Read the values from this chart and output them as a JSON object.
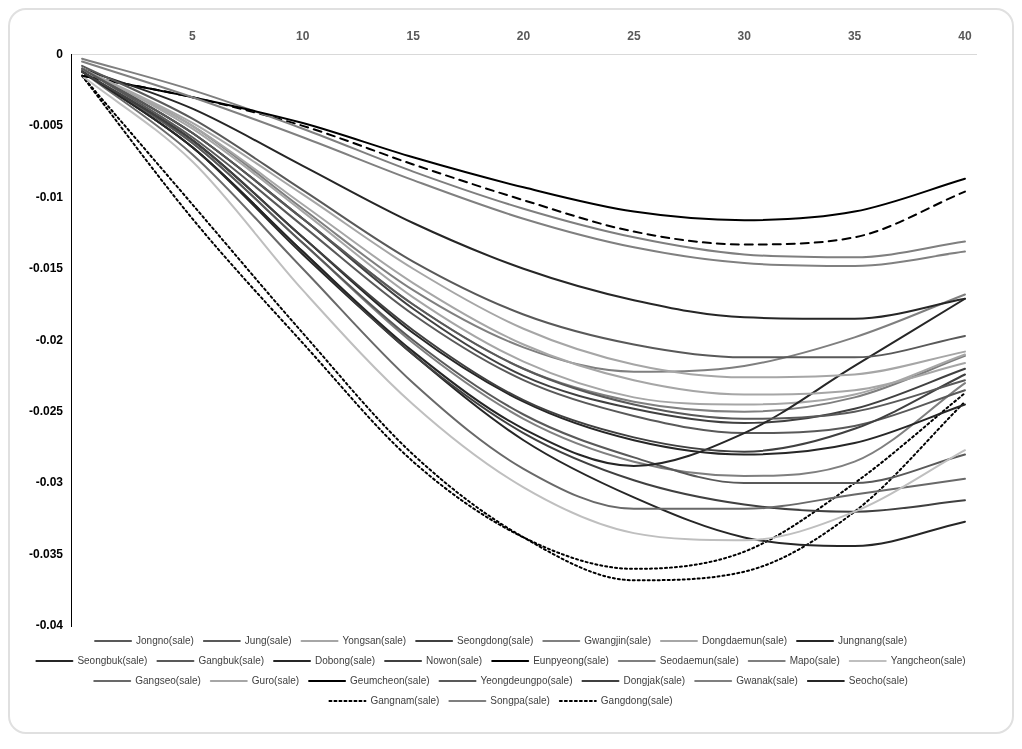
{
  "chart_data": {
    "type": "line",
    "x": [
      0,
      5,
      10,
      15,
      20,
      25,
      30,
      35,
      40
    ],
    "xlim": [
      -0.5,
      40.5
    ],
    "xticks": [
      5,
      10,
      15,
      20,
      25,
      30,
      35,
      40
    ],
    "ylim": [
      -0.04,
      0
    ],
    "yticks": [
      -0.04,
      -0.035,
      -0.03,
      -0.025,
      -0.02,
      -0.015,
      -0.01,
      -0.005,
      0
    ],
    "grid": false,
    "legend": "bottom",
    "marker": "none",
    "line_style": "solid",
    "series": [
      {
        "name": "Jongno(sale)",
        "color": "#595959",
        "values": [
          -0.0008,
          -0.0045,
          -0.0095,
          -0.0145,
          -0.0182,
          -0.0203,
          -0.0212,
          -0.0212,
          -0.0197
        ]
      },
      {
        "name": "Jung(sale)",
        "color": "#595959",
        "values": [
          -0.001,
          -0.0055,
          -0.0115,
          -0.0175,
          -0.022,
          -0.0245,
          -0.0255,
          -0.025,
          -0.0228
        ]
      },
      {
        "name": "Yongsan(sale)",
        "color": "#a6a6a6",
        "values": [
          -0.001,
          -0.005,
          -0.0105,
          -0.016,
          -0.0203,
          -0.0228,
          -0.0238,
          -0.0235,
          -0.0216
        ]
      },
      {
        "name": "Seongdong(sale)",
        "color": "#404040",
        "values": [
          -0.0012,
          -0.006,
          -0.0128,
          -0.0193,
          -0.0242,
          -0.0268,
          -0.0278,
          -0.0262,
          -0.0224
        ]
      },
      {
        "name": "Gwangjin(sale)",
        "color": "#808080",
        "values": [
          -0.0005,
          -0.003,
          -0.0058,
          -0.0088,
          -0.0115,
          -0.0135,
          -0.0146,
          -0.0148,
          -0.0138
        ]
      },
      {
        "name": "Dongdaemun(sale)",
        "color": "#a6a6a6",
        "values": [
          -0.001,
          -0.0048,
          -0.0098,
          -0.015,
          -0.0192,
          -0.0217,
          -0.0226,
          -0.0224,
          -0.0208
        ]
      },
      {
        "name": "Jungnang(sale)",
        "color": "#262626",
        "values": [
          -0.001,
          -0.0038,
          -0.0078,
          -0.0118,
          -0.015,
          -0.0172,
          -0.0184,
          -0.0185,
          -0.0171
        ]
      },
      {
        "name": "Seongbuk(sale)",
        "color": "#262626",
        "values": [
          -0.0012,
          -0.0065,
          -0.0138,
          -0.0208,
          -0.0262,
          -0.0288,
          -0.0265,
          -0.0218,
          -0.0171
        ]
      },
      {
        "name": "Gangbuk(sale)",
        "color": "#595959",
        "values": [
          -0.001,
          -0.0058,
          -0.012,
          -0.0182,
          -0.0228,
          -0.0253,
          -0.0265,
          -0.026,
          -0.0235
        ]
      },
      {
        "name": "Dobong(sale)",
        "color": "#262626",
        "values": [
          -0.0012,
          -0.006,
          -0.0128,
          -0.0195,
          -0.0243,
          -0.027,
          -0.028,
          -0.0272,
          -0.0245
        ]
      },
      {
        "name": "Nowon(sale)",
        "color": "#404040",
        "values": [
          -0.001,
          -0.0055,
          -0.0115,
          -0.0178,
          -0.0225,
          -0.0248,
          -0.0258,
          -0.0248,
          -0.022
        ]
      },
      {
        "name": "Eunpyeong(sale)",
        "color": "#000000",
        "values": [
          -0.0015,
          -0.003,
          -0.0048,
          -0.0072,
          -0.0093,
          -0.011,
          -0.0116,
          -0.011,
          -0.0087
        ]
      },
      {
        "name": "Seodaemun(sale)",
        "color": "#7f7f7f",
        "values": [
          -0.0003,
          -0.0025,
          -0.0052,
          -0.0082,
          -0.0108,
          -0.0128,
          -0.014,
          -0.0142,
          -0.0131
        ]
      },
      {
        "name": "Mapo(sale)",
        "color": "#7f7f7f",
        "values": [
          -0.001,
          -0.005,
          -0.0108,
          -0.0165,
          -0.0205,
          -0.0222,
          -0.0218,
          -0.0198,
          -0.0168
        ]
      },
      {
        "name": "Yangcheon(sale)",
        "color": "#bfbfbf",
        "values": [
          -0.0015,
          -0.0075,
          -0.0165,
          -0.0245,
          -0.0303,
          -0.0335,
          -0.034,
          -0.032,
          -0.0277
        ]
      },
      {
        "name": "Gangseo(sale)",
        "color": "#696969",
        "values": [
          -0.0012,
          -0.007,
          -0.015,
          -0.023,
          -0.029,
          -0.0318,
          -0.0318,
          -0.0308,
          -0.0297
        ]
      },
      {
        "name": "Guro(sale)",
        "color": "#a6a6a6",
        "values": [
          -0.001,
          -0.0052,
          -0.011,
          -0.017,
          -0.0215,
          -0.024,
          -0.0245,
          -0.0238,
          -0.021
        ]
      },
      {
        "name": "Geumcheon(sale)",
        "color": "#000000",
        "line_style": "dashed",
        "values": [
          -0.0015,
          -0.003,
          -0.005,
          -0.0077,
          -0.0102,
          -0.0124,
          -0.0133,
          -0.0128,
          -0.0096
        ]
      },
      {
        "name": "Yeongdeungpo(sale)",
        "color": "#595959",
        "values": [
          -0.0012,
          -0.0062,
          -0.0132,
          -0.02,
          -0.0252,
          -0.0282,
          -0.03,
          -0.03,
          -0.028
        ]
      },
      {
        "name": "Dongjak(sale)",
        "color": "#404040",
        "values": [
          -0.0012,
          -0.0065,
          -0.0138,
          -0.021,
          -0.0265,
          -0.0298,
          -0.0315,
          -0.032,
          -0.0312
        ]
      },
      {
        "name": "Gwanak(sale)",
        "color": "#7f7f7f",
        "values": [
          -0.0012,
          -0.0062,
          -0.0132,
          -0.0202,
          -0.0255,
          -0.0285,
          -0.0295,
          -0.0285,
          -0.023
        ]
      },
      {
        "name": "Seocho(sale)",
        "color": "#262626",
        "values": [
          -0.0012,
          -0.0065,
          -0.014,
          -0.021,
          -0.027,
          -0.031,
          -0.0338,
          -0.0344,
          -0.0327
        ]
      },
      {
        "name": "Gangnam(sale)",
        "color": "#000000",
        "line_style": "dotted",
        "values": [
          -0.0015,
          -0.0105,
          -0.0195,
          -0.028,
          -0.0338,
          -0.0368,
          -0.0362,
          -0.032,
          -0.0243
        ]
      },
      {
        "name": "Songpa(sale)",
        "color": "#7f7f7f",
        "values": [
          -0.001,
          -0.0055,
          -0.0115,
          -0.0175,
          -0.022,
          -0.0243,
          -0.025,
          -0.024,
          -0.0211
        ]
      },
      {
        "name": "Gangdong(sale)",
        "color": "#000000",
        "line_style": "dotted",
        "values": [
          -0.0015,
          -0.0115,
          -0.0202,
          -0.0285,
          -0.0338,
          -0.036,
          -0.0348,
          -0.03,
          -0.0237
        ]
      }
    ]
  }
}
